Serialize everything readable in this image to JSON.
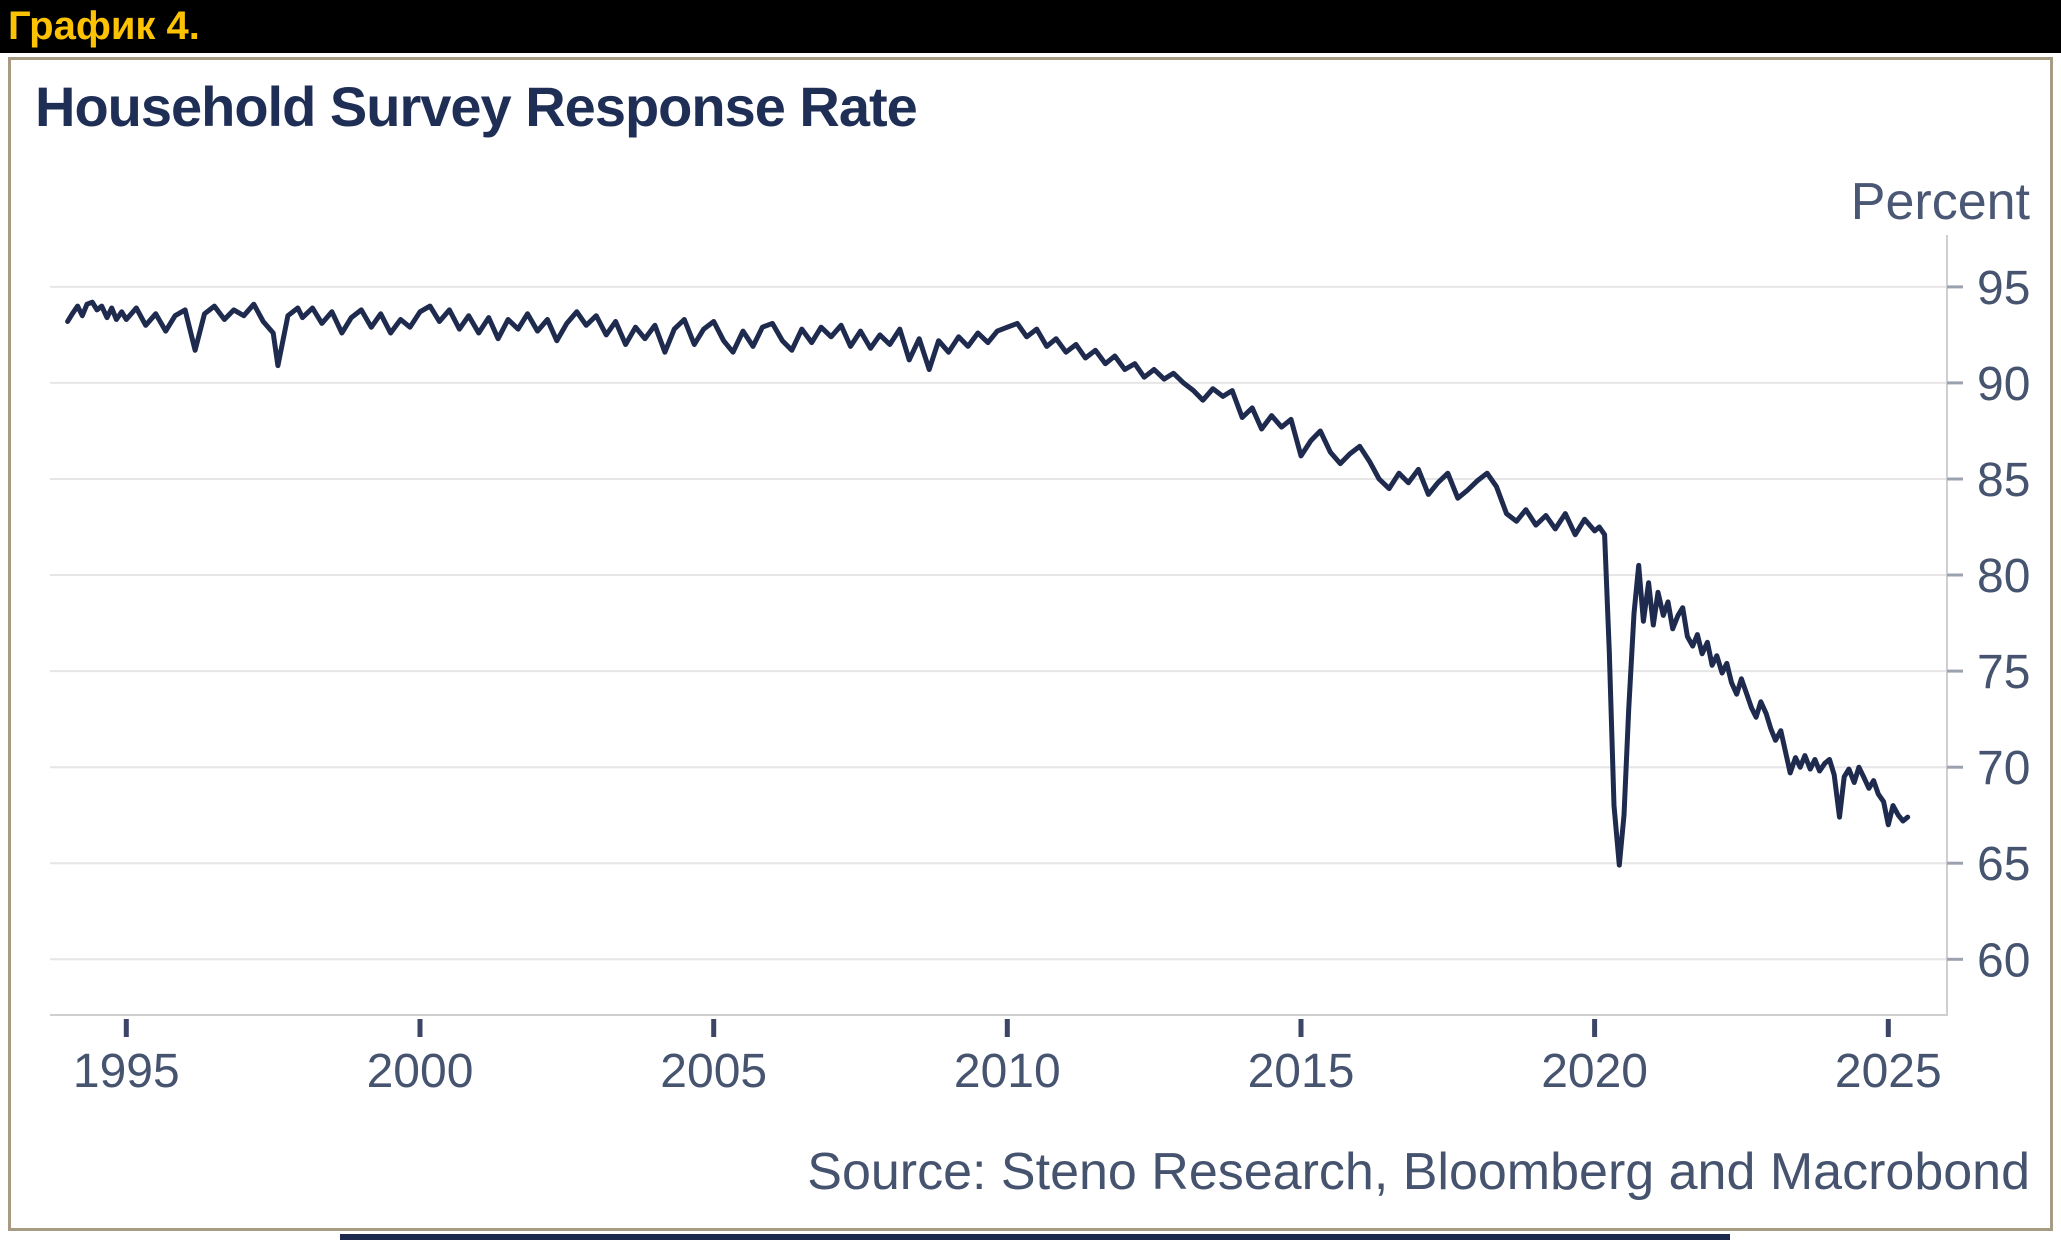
{
  "page": {
    "figure_label": "График 4.",
    "header_background": "#000000",
    "figure_label_color": "#fdc303"
  },
  "chart": {
    "title": "Household Survey Response Rate",
    "unit_label": "Percent",
    "source": "Source: Steno Research, Bloomberg and Macrobond",
    "colors": {
      "line": "#1f2b4e",
      "title_text": "#1f2e55",
      "axis_text": "#46546f",
      "gridline": "#e6e6e6",
      "axis_line": "#cfcfcf",
      "y_tick": "#9aa2b0",
      "x_tick": "#3d4566",
      "card_border": "#a89b83",
      "accent_bar": "#1c2b4d",
      "accent_yellow": "#fdc303"
    }
  },
  "chart_data": {
    "type": "line",
    "title": "Household Survey Response Rate",
    "ylabel": "Percent",
    "xlabel": "",
    "grid": "horizontal",
    "legend": "none",
    "axis_position": "right",
    "x_ticks": [
      1995,
      2000,
      2005,
      2010,
      2015,
      2020,
      2025
    ],
    "y_ticks": [
      95,
      90,
      85,
      80,
      75,
      70,
      65,
      60
    ],
    "x_range": [
      1993.7,
      2026.0
    ],
    "y_range": [
      57.1,
      97.7
    ],
    "source": "Source: Steno Research, Bloomberg and Macrobond",
    "series": [
      {
        "name": "Household survey response rate (percent)",
        "points": [
          [
            1994.0,
            93.2
          ],
          [
            1994.08,
            93.6
          ],
          [
            1994.17,
            94.0
          ],
          [
            1994.25,
            93.5
          ],
          [
            1994.33,
            94.1
          ],
          [
            1994.42,
            94.2
          ],
          [
            1994.5,
            93.8
          ],
          [
            1994.58,
            94.0
          ],
          [
            1994.67,
            93.4
          ],
          [
            1994.75,
            93.9
          ],
          [
            1994.83,
            93.3
          ],
          [
            1994.92,
            93.7
          ],
          [
            1995.0,
            93.3
          ],
          [
            1995.17,
            93.9
          ],
          [
            1995.33,
            93.0
          ],
          [
            1995.5,
            93.6
          ],
          [
            1995.67,
            92.7
          ],
          [
            1995.83,
            93.5
          ],
          [
            1996.0,
            93.8
          ],
          [
            1996.17,
            91.7
          ],
          [
            1996.33,
            93.6
          ],
          [
            1996.5,
            94.0
          ],
          [
            1996.67,
            93.3
          ],
          [
            1996.83,
            93.8
          ],
          [
            1997.0,
            93.5
          ],
          [
            1997.17,
            94.1
          ],
          [
            1997.33,
            93.2
          ],
          [
            1997.5,
            92.6
          ],
          [
            1997.58,
            90.9
          ],
          [
            1997.75,
            93.5
          ],
          [
            1997.92,
            93.9
          ],
          [
            1998.0,
            93.4
          ],
          [
            1998.17,
            93.9
          ],
          [
            1998.33,
            93.1
          ],
          [
            1998.5,
            93.7
          ],
          [
            1998.67,
            92.6
          ],
          [
            1998.83,
            93.4
          ],
          [
            1999.0,
            93.8
          ],
          [
            1999.17,
            92.9
          ],
          [
            1999.33,
            93.6
          ],
          [
            1999.5,
            92.6
          ],
          [
            1999.67,
            93.3
          ],
          [
            1999.83,
            92.9
          ],
          [
            2000.0,
            93.7
          ],
          [
            2000.17,
            94.0
          ],
          [
            2000.33,
            93.2
          ],
          [
            2000.5,
            93.8
          ],
          [
            2000.67,
            92.8
          ],
          [
            2000.83,
            93.5
          ],
          [
            2001.0,
            92.6
          ],
          [
            2001.17,
            93.4
          ],
          [
            2001.33,
            92.3
          ],
          [
            2001.5,
            93.3
          ],
          [
            2001.67,
            92.8
          ],
          [
            2001.83,
            93.6
          ],
          [
            2002.0,
            92.7
          ],
          [
            2002.17,
            93.3
          ],
          [
            2002.33,
            92.2
          ],
          [
            2002.5,
            93.1
          ],
          [
            2002.67,
            93.7
          ],
          [
            2002.83,
            93.0
          ],
          [
            2003.0,
            93.5
          ],
          [
            2003.17,
            92.5
          ],
          [
            2003.33,
            93.2
          ],
          [
            2003.5,
            92.0
          ],
          [
            2003.67,
            92.9
          ],
          [
            2003.83,
            92.3
          ],
          [
            2004.0,
            93.0
          ],
          [
            2004.17,
            91.6
          ],
          [
            2004.33,
            92.8
          ],
          [
            2004.5,
            93.3
          ],
          [
            2004.67,
            92.0
          ],
          [
            2004.83,
            92.8
          ],
          [
            2005.0,
            93.2
          ],
          [
            2005.17,
            92.2
          ],
          [
            2005.33,
            91.6
          ],
          [
            2005.5,
            92.7
          ],
          [
            2005.67,
            91.9
          ],
          [
            2005.83,
            92.9
          ],
          [
            2006.0,
            93.1
          ],
          [
            2006.17,
            92.2
          ],
          [
            2006.33,
            91.7
          ],
          [
            2006.5,
            92.8
          ],
          [
            2006.67,
            92.1
          ],
          [
            2006.83,
            92.9
          ],
          [
            2007.0,
            92.4
          ],
          [
            2007.17,
            93.0
          ],
          [
            2007.33,
            91.9
          ],
          [
            2007.5,
            92.7
          ],
          [
            2007.67,
            91.8
          ],
          [
            2007.83,
            92.5
          ],
          [
            2008.0,
            92.0
          ],
          [
            2008.17,
            92.8
          ],
          [
            2008.33,
            91.2
          ],
          [
            2008.5,
            92.3
          ],
          [
            2008.67,
            90.7
          ],
          [
            2008.83,
            92.2
          ],
          [
            2009.0,
            91.6
          ],
          [
            2009.17,
            92.4
          ],
          [
            2009.33,
            91.9
          ],
          [
            2009.5,
            92.6
          ],
          [
            2009.67,
            92.1
          ],
          [
            2009.83,
            92.7
          ],
          [
            2010.0,
            92.9
          ],
          [
            2010.17,
            93.1
          ],
          [
            2010.33,
            92.4
          ],
          [
            2010.5,
            92.8
          ],
          [
            2010.67,
            91.9
          ],
          [
            2010.83,
            92.3
          ],
          [
            2011.0,
            91.6
          ],
          [
            2011.17,
            92.0
          ],
          [
            2011.33,
            91.3
          ],
          [
            2011.5,
            91.7
          ],
          [
            2011.67,
            91.0
          ],
          [
            2011.83,
            91.4
          ],
          [
            2012.0,
            90.7
          ],
          [
            2012.17,
            91.0
          ],
          [
            2012.33,
            90.3
          ],
          [
            2012.5,
            90.7
          ],
          [
            2012.67,
            90.2
          ],
          [
            2012.83,
            90.5
          ],
          [
            2013.0,
            90.0
          ],
          [
            2013.17,
            89.6
          ],
          [
            2013.33,
            89.1
          ],
          [
            2013.5,
            89.7
          ],
          [
            2013.67,
            89.3
          ],
          [
            2013.83,
            89.6
          ],
          [
            2014.0,
            88.2
          ],
          [
            2014.17,
            88.7
          ],
          [
            2014.33,
            87.6
          ],
          [
            2014.5,
            88.3
          ],
          [
            2014.67,
            87.7
          ],
          [
            2014.83,
            88.1
          ],
          [
            2015.0,
            86.2
          ],
          [
            2015.17,
            87.0
          ],
          [
            2015.33,
            87.5
          ],
          [
            2015.5,
            86.4
          ],
          [
            2015.67,
            85.8
          ],
          [
            2015.83,
            86.3
          ],
          [
            2016.0,
            86.7
          ],
          [
            2016.17,
            85.9
          ],
          [
            2016.33,
            85.0
          ],
          [
            2016.5,
            84.5
          ],
          [
            2016.67,
            85.3
          ],
          [
            2016.83,
            84.8
          ],
          [
            2017.0,
            85.5
          ],
          [
            2017.17,
            84.2
          ],
          [
            2017.33,
            84.8
          ],
          [
            2017.5,
            85.3
          ],
          [
            2017.67,
            84.0
          ],
          [
            2017.83,
            84.4
          ],
          [
            2018.0,
            84.9
          ],
          [
            2018.17,
            85.3
          ],
          [
            2018.33,
            84.6
          ],
          [
            2018.5,
            83.2
          ],
          [
            2018.67,
            82.8
          ],
          [
            2018.83,
            83.4
          ],
          [
            2019.0,
            82.6
          ],
          [
            2019.17,
            83.1
          ],
          [
            2019.33,
            82.4
          ],
          [
            2019.5,
            83.2
          ],
          [
            2019.67,
            82.1
          ],
          [
            2019.83,
            82.9
          ],
          [
            2020.0,
            82.3
          ],
          [
            2020.08,
            82.5
          ],
          [
            2020.17,
            82.1
          ],
          [
            2020.25,
            76.0
          ],
          [
            2020.33,
            68.0
          ],
          [
            2020.42,
            64.9
          ],
          [
            2020.5,
            67.5
          ],
          [
            2020.58,
            73.0
          ],
          [
            2020.67,
            78.0
          ],
          [
            2020.75,
            80.5
          ],
          [
            2020.83,
            77.6
          ],
          [
            2020.92,
            79.6
          ],
          [
            2021.0,
            77.4
          ],
          [
            2021.08,
            79.1
          ],
          [
            2021.17,
            77.9
          ],
          [
            2021.25,
            78.6
          ],
          [
            2021.33,
            77.2
          ],
          [
            2021.42,
            77.9
          ],
          [
            2021.5,
            78.3
          ],
          [
            2021.58,
            76.8
          ],
          [
            2021.67,
            76.3
          ],
          [
            2021.75,
            76.9
          ],
          [
            2021.83,
            75.9
          ],
          [
            2021.92,
            76.5
          ],
          [
            2022.0,
            75.3
          ],
          [
            2022.08,
            75.8
          ],
          [
            2022.17,
            74.9
          ],
          [
            2022.25,
            75.4
          ],
          [
            2022.33,
            74.4
          ],
          [
            2022.42,
            73.8
          ],
          [
            2022.5,
            74.6
          ],
          [
            2022.58,
            73.9
          ],
          [
            2022.67,
            73.1
          ],
          [
            2022.75,
            72.6
          ],
          [
            2022.83,
            73.4
          ],
          [
            2022.92,
            72.8
          ],
          [
            2023.0,
            72.0
          ],
          [
            2023.08,
            71.4
          ],
          [
            2023.17,
            71.9
          ],
          [
            2023.25,
            70.8
          ],
          [
            2023.33,
            69.7
          ],
          [
            2023.42,
            70.5
          ],
          [
            2023.5,
            70.0
          ],
          [
            2023.58,
            70.6
          ],
          [
            2023.67,
            69.9
          ],
          [
            2023.75,
            70.4
          ],
          [
            2023.83,
            69.8
          ],
          [
            2023.92,
            70.2
          ],
          [
            2024.0,
            70.4
          ],
          [
            2024.08,
            69.6
          ],
          [
            2024.17,
            67.4
          ],
          [
            2024.25,
            69.5
          ],
          [
            2024.33,
            69.9
          ],
          [
            2024.42,
            69.2
          ],
          [
            2024.5,
            70.0
          ],
          [
            2024.58,
            69.5
          ],
          [
            2024.67,
            68.9
          ],
          [
            2024.75,
            69.3
          ],
          [
            2024.83,
            68.6
          ],
          [
            2024.92,
            68.2
          ],
          [
            2025.0,
            67.0
          ],
          [
            2025.08,
            68.0
          ],
          [
            2025.17,
            67.5
          ],
          [
            2025.25,
            67.2
          ],
          [
            2025.33,
            67.4
          ]
        ]
      }
    ]
  }
}
